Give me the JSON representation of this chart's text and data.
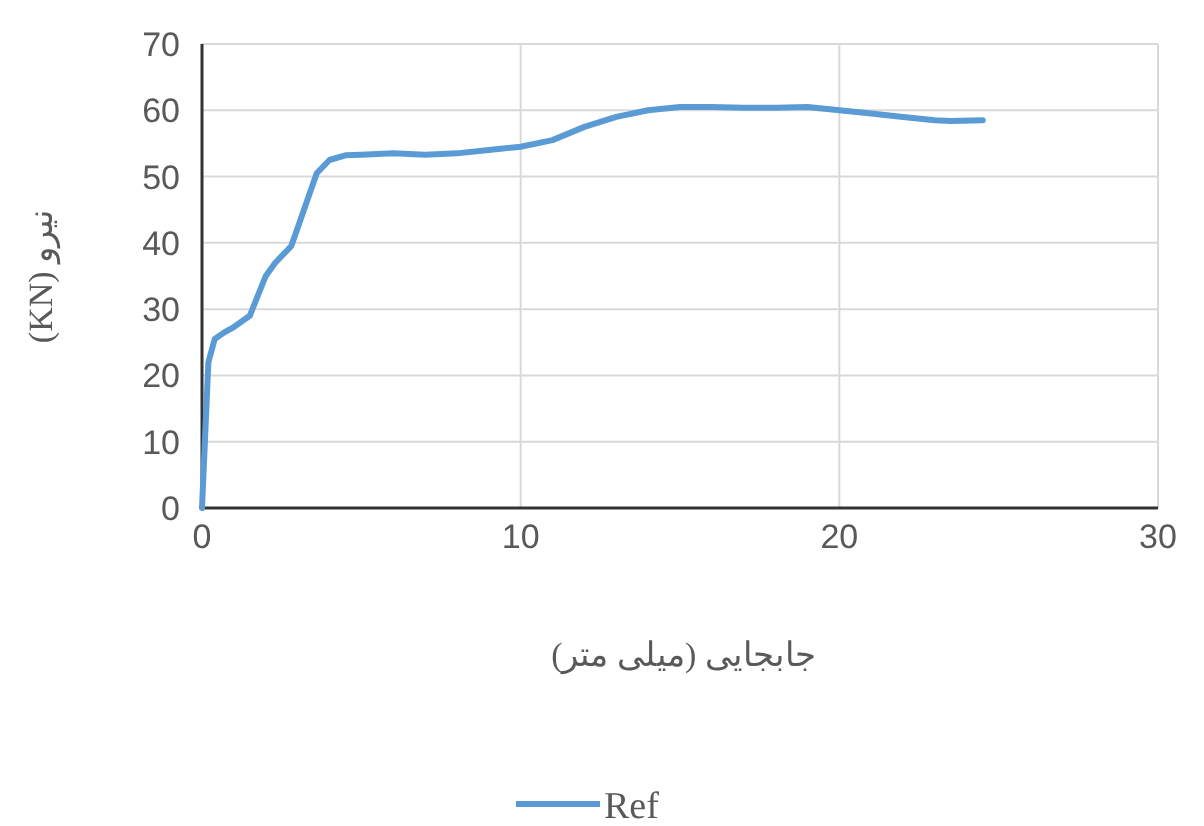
{
  "chart_data": {
    "type": "line",
    "xlabel": "جابجایی (میلی متر)",
    "ylabel": "نیرو (KN)",
    "xlim": [
      0,
      30
    ],
    "ylim": [
      0,
      70
    ],
    "xticks": [
      0,
      10,
      20,
      30
    ],
    "yticks": [
      0,
      10,
      20,
      30,
      40,
      50,
      60,
      70
    ],
    "grid": true,
    "legend": "bottom",
    "marker": "none",
    "line_style": "solid",
    "series": [
      {
        "name": "Ref",
        "color": "#5b9bd5",
        "x": [
          0,
          0.2,
          0.4,
          0.7,
          1,
          1.5,
          2,
          2.3,
          2.8,
          3.2,
          3.6,
          4,
          4.5,
          5,
          6,
          7,
          8,
          9,
          10,
          11,
          12,
          13,
          14,
          15,
          16,
          17,
          18,
          19,
          20,
          21,
          22,
          23,
          23.5,
          24.5
        ],
        "values": [
          0,
          22,
          25.5,
          26.5,
          27.3,
          29,
          35,
          37,
          39.5,
          45,
          50.5,
          52.5,
          53.2,
          53.3,
          53.5,
          53.3,
          53.5,
          54,
          54.5,
          55.5,
          57.5,
          59,
          60,
          60.5,
          60.5,
          60.4,
          60.4,
          60.5,
          60,
          59.5,
          59,
          58.5,
          58.4,
          58.5
        ]
      }
    ]
  }
}
